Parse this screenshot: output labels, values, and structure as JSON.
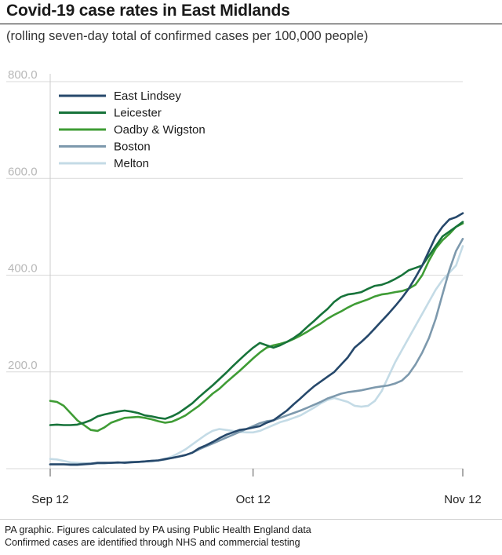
{
  "chart_data": {
    "type": "line",
    "title": "Covid-19 case rates in East Midlands",
    "subtitle": "(rolling seven-day total of confirmed cases per 100,000 people)",
    "xlabel": "",
    "ylabel": "",
    "x_tick_labels": [
      "Sep 12",
      "Oct 12",
      "Nov 12"
    ],
    "y_tick_labels": [
      "200.0",
      "400.0",
      "600.0",
      "800.0"
    ],
    "y_ticks": [
      200,
      400,
      600,
      800
    ],
    "ylim": [
      0,
      800
    ],
    "x_ticks_day": [
      0,
      30,
      61
    ],
    "xlim_day": [
      0,
      61
    ],
    "x_unit": "days since Sep 12",
    "series": [
      {
        "name": "East Lindsey",
        "color": "#26486b",
        "values": [
          9,
          9,
          9,
          8,
          8,
          9,
          10,
          12,
          12,
          12,
          13,
          12,
          13,
          14,
          15,
          16,
          17,
          20,
          22,
          25,
          28,
          33,
          42,
          48,
          55,
          63,
          70,
          75,
          80,
          82,
          85,
          88,
          95,
          100,
          110,
          120,
          133,
          145,
          158,
          170,
          180,
          190,
          200,
          215,
          230,
          250,
          262,
          275,
          290,
          305,
          320,
          336,
          353,
          372,
          395,
          420,
          450,
          480,
          500,
          515,
          520,
          528
        ]
      },
      {
        "name": "Leicester",
        "color": "#17733a",
        "values": [
          90,
          91,
          90,
          90,
          91,
          95,
          100,
          108,
          112,
          115,
          118,
          120,
          118,
          115,
          110,
          108,
          105,
          103,
          108,
          115,
          125,
          135,
          148,
          160,
          172,
          185,
          198,
          212,
          225,
          238,
          250,
          260,
          255,
          250,
          255,
          262,
          270,
          280,
          293,
          305,
          318,
          330,
          345,
          355,
          360,
          362,
          365,
          372,
          378,
          380,
          385,
          392,
          400,
          410,
          415,
          420,
          440,
          460,
          480,
          490,
          500,
          510
        ]
      },
      {
        "name": "Oadby & Wigston",
        "color": "#3f9c35",
        "values": [
          140,
          138,
          130,
          115,
          100,
          90,
          80,
          78,
          85,
          95,
          100,
          105,
          106,
          107,
          105,
          102,
          98,
          95,
          97,
          103,
          110,
          120,
          130,
          142,
          155,
          165,
          178,
          190,
          202,
          215,
          228,
          240,
          250,
          255,
          258,
          262,
          268,
          275,
          283,
          292,
          300,
          310,
          318,
          325,
          333,
          340,
          345,
          350,
          356,
          360,
          362,
          365,
          367,
          372,
          380,
          400,
          430,
          455,
          472,
          485,
          500,
          507
        ]
      },
      {
        "name": "Boston",
        "color": "#7d99ad",
        "values": [
          9,
          9,
          9,
          9,
          9,
          10,
          10,
          11,
          11,
          12,
          12,
          13,
          14,
          14,
          15,
          16,
          17,
          19,
          22,
          25,
          28,
          33,
          40,
          46,
          52,
          58,
          64,
          70,
          76,
          82,
          88,
          94,
          98,
          100,
          105,
          110,
          115,
          120,
          126,
          132,
          138,
          145,
          150,
          155,
          158,
          160,
          162,
          165,
          168,
          170,
          172,
          176,
          182,
          195,
          215,
          240,
          270,
          310,
          360,
          410,
          450,
          475
        ]
      },
      {
        "name": "Melton",
        "color": "#c4dbe6",
        "values": [
          20,
          19,
          16,
          13,
          12,
          11,
          11,
          11,
          12,
          12,
          13,
          13,
          14,
          14,
          15,
          15,
          17,
          20,
          25,
          32,
          40,
          50,
          60,
          70,
          78,
          82,
          80,
          78,
          76,
          75,
          75,
          78,
          84,
          90,
          96,
          100,
          105,
          110,
          118,
          126,
          135,
          142,
          146,
          142,
          138,
          130,
          128,
          130,
          140,
          160,
          190,
          220,
          245,
          270,
          295,
          320,
          345,
          370,
          390,
          405,
          420,
          460
        ]
      }
    ]
  }
}
